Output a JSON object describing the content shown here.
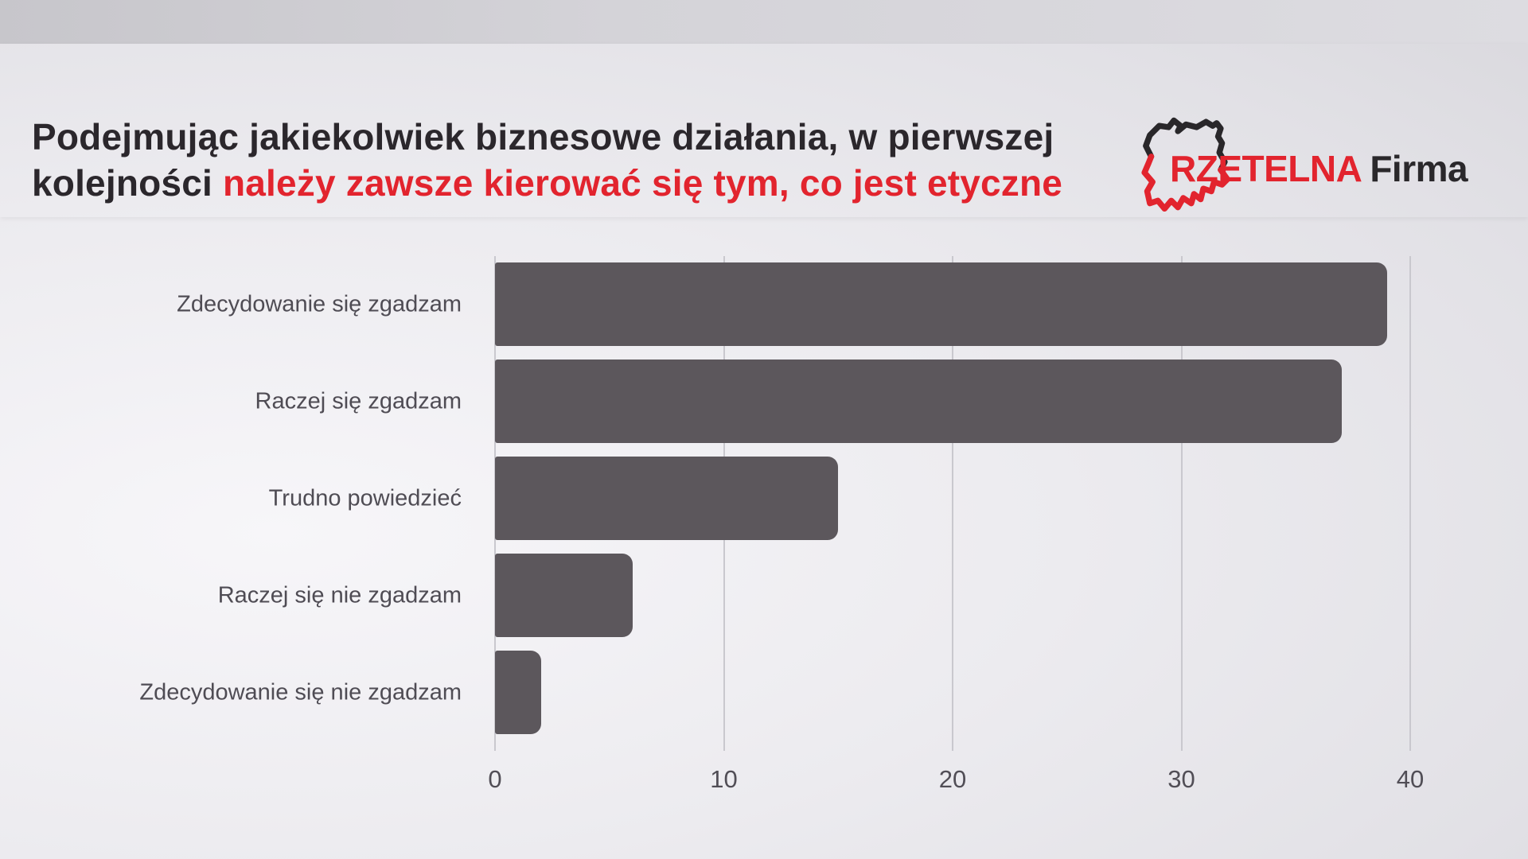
{
  "header": {
    "title_line1": "Podejmując jakiekolwiek biznesowe działania, w pierwszej",
    "title_line2_prefix": "kolejności ",
    "title_line2_highlight": "należy zawsze kierować się tym, co jest etyczne"
  },
  "logo": {
    "brand_primary": "RZETELNA",
    "brand_secondary": "Firma",
    "icon": "poland-map-outline-icon"
  },
  "colors": {
    "bar": "#5c575c",
    "accent_red": "#e2242e",
    "title_dark": "#2b272c",
    "grid_line": "#c9c8ce",
    "logo_black": "#29272a"
  },
  "chart_data": {
    "type": "bar",
    "orientation": "horizontal",
    "title": "",
    "xlabel": "",
    "ylabel": "",
    "categories": [
      "Zdecydowanie się zgadzam",
      "Raczej się zgadzam",
      "Trudno powiedzieć",
      "Raczej się nie zgadzam",
      "Zdecydowanie się nie zgadzam"
    ],
    "values": [
      39,
      37,
      15,
      6,
      2
    ],
    "xlim": [
      0,
      40
    ],
    "xticks": [
      0,
      10,
      20,
      30,
      40
    ],
    "grid": true,
    "legend": false
  }
}
